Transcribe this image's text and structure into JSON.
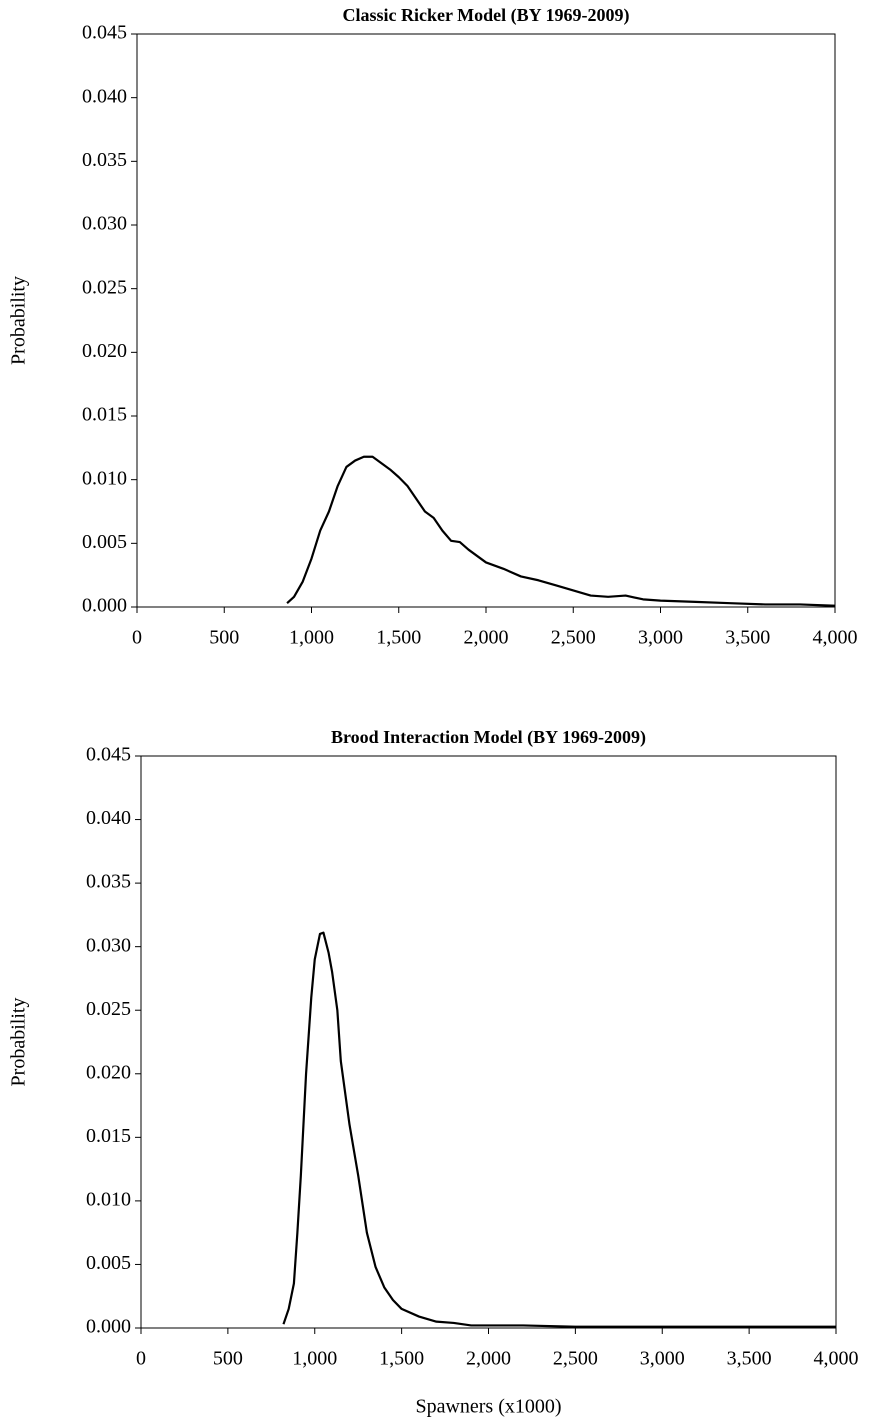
{
  "chart_data": [
    {
      "type": "line",
      "title": "Classic Ricker Model (BY 1969-2009)",
      "y_label": "Probability",
      "x": [
        860,
        900,
        950,
        1000,
        1050,
        1100,
        1150,
        1200,
        1250,
        1300,
        1350,
        1400,
        1450,
        1500,
        1550,
        1600,
        1650,
        1700,
        1750,
        1800,
        1850,
        1900,
        1950,
        2000,
        2100,
        2200,
        2300,
        2400,
        2500,
        2600,
        2700,
        2800,
        2900,
        3000,
        3200,
        3400,
        3600,
        3800,
        4000
      ],
      "series": [
        {
          "color": "#000000",
          "values": [
            0.0003,
            0.0008,
            0.002,
            0.0038,
            0.006,
            0.0075,
            0.0095,
            0.011,
            0.0115,
            0.0118,
            0.0118,
            0.0113,
            0.0108,
            0.0102,
            0.0095,
            0.0085,
            0.0075,
            0.007,
            0.006,
            0.0052,
            0.0051,
            0.0045,
            0.004,
            0.0035,
            0.003,
            0.0024,
            0.0021,
            0.0017,
            0.0013,
            0.0009,
            0.0008,
            0.0009,
            0.0006,
            0.0005,
            0.0004,
            0.0003,
            0.0002,
            0.0002,
            0.0001
          ]
        }
      ],
      "xlim": [
        0,
        4000
      ],
      "xticks": [
        0,
        500,
        {
          "value": 1000,
          "label": "1,000"
        },
        {
          "value": 1500,
          "label": "1,500"
        },
        {
          "value": 2000,
          "label": "2,000"
        },
        {
          "value": 2500,
          "label": "2,500"
        },
        {
          "value": 3000,
          "label": "3,000"
        },
        {
          "value": 3500,
          "label": "3,500"
        },
        {
          "value": 4000,
          "label": "4,000"
        }
      ],
      "ylim": [
        0,
        0.045
      ],
      "yticks": [
        {
          "value": 0,
          "label": "0.000"
        },
        {
          "value": 0.005,
          "label": "0.005"
        },
        {
          "value": 0.01,
          "label": "0.010"
        },
        {
          "value": 0.015,
          "label": "0.015"
        },
        {
          "value": 0.02,
          "label": "0.020"
        },
        {
          "value": 0.025,
          "label": "0.025"
        },
        {
          "value": 0.03,
          "label": "0.030"
        },
        {
          "value": 0.035,
          "label": "0.035"
        },
        {
          "value": 0.04,
          "label": "0.040"
        },
        {
          "value": 0.045,
          "label": "0.045"
        }
      ]
    },
    {
      "type": "line",
      "title": "Brood Interaction Model (BY 1969-2009)",
      "y_label": "Probability",
      "x_label": "Spawners (x1000)",
      "x": [
        820,
        850,
        880,
        900,
        920,
        950,
        980,
        1000,
        1030,
        1050,
        1080,
        1100,
        1130,
        1150,
        1200,
        1250,
        1300,
        1350,
        1400,
        1450,
        1500,
        1600,
        1700,
        1800,
        1900,
        2000,
        2200,
        2500,
        3000,
        3500,
        4000
      ],
      "series": [
        {
          "color": "#000000",
          "values": [
            0.0003,
            0.0015,
            0.0035,
            0.0075,
            0.012,
            0.02,
            0.026,
            0.029,
            0.031,
            0.0311,
            0.0295,
            0.028,
            0.025,
            0.021,
            0.016,
            0.012,
            0.0075,
            0.0048,
            0.0032,
            0.0022,
            0.0015,
            0.0009,
            0.0005,
            0.0004,
            0.0002,
            0.0002,
            0.0002,
            0.0001,
            0.0001,
            0.0001,
            0.0001
          ]
        }
      ],
      "xlim": [
        0,
        4000
      ],
      "xticks": [
        0,
        500,
        {
          "value": 1000,
          "label": "1,000"
        },
        {
          "value": 1500,
          "label": "1,500"
        },
        {
          "value": 2000,
          "label": "2,000"
        },
        {
          "value": 2500,
          "label": "2,500"
        },
        {
          "value": 3000,
          "label": "3,000"
        },
        {
          "value": 3500,
          "label": "3,500"
        },
        {
          "value": 4000,
          "label": "4,000"
        }
      ],
      "ylim": [
        0,
        0.045
      ],
      "yticks": [
        {
          "value": 0,
          "label": "0.000"
        },
        {
          "value": 0.005,
          "label": "0.005"
        },
        {
          "value": 0.01,
          "label": "0.010"
        },
        {
          "value": 0.015,
          "label": "0.015"
        },
        {
          "value": 0.02,
          "label": "0.020"
        },
        {
          "value": 0.025,
          "label": "0.025"
        },
        {
          "value": 0.03,
          "label": "0.030"
        },
        {
          "value": 0.035,
          "label": "0.035"
        },
        {
          "value": 0.04,
          "label": "0.040"
        },
        {
          "value": 0.045,
          "label": "0.045"
        }
      ]
    }
  ]
}
